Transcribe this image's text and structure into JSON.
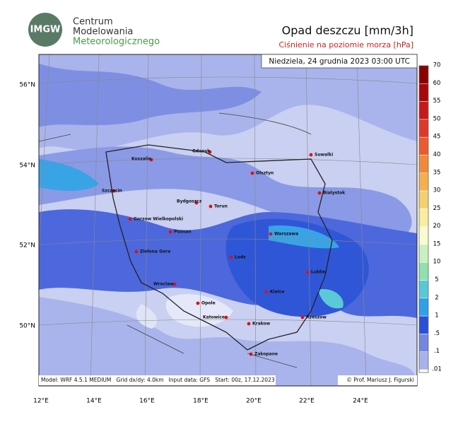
{
  "header": {
    "org_lines": [
      "Centrum",
      "Modelowania",
      "Meteorologicznego"
    ],
    "logo": "IMGW",
    "title": "Opad deszczu [mm/3h]",
    "subtitle": "Ciśnienie na poziomie morza [hPa]"
  },
  "map": {
    "valid_time": "Niedziela, 24 grudnia 2023 03:00 UTC",
    "lat_labels": [
      "56°N",
      "54°N",
      "52°N",
      "50°N"
    ],
    "lon_labels": [
      "12°E",
      "14°E",
      "16°E",
      "18°E",
      "20°E",
      "22°E",
      "24°E"
    ],
    "cities": [
      "Gdansk",
      "Koszalin",
      "Suwalki",
      "Olsztyn",
      "Bialystok",
      "Szczecin",
      "Bydgoszcz",
      "Torun",
      "Gorzow Wielkopolski",
      "Poznan",
      "Warszawa",
      "Zielona Gora",
      "Lodz",
      "Lublin",
      "Wroclaw",
      "Kielce",
      "Opole",
      "Katowice",
      "Krakow",
      "Rzeszow",
      "Zakopane"
    ],
    "footer_left": "Model: WRF 4.5.1 MEDIUM   Grid dx/dy: 4.0km   Input data: GFS   Start: 00z, 17.12.2023",
    "footer_right": "© Prof. Mariusz J. Figurski"
  },
  "colorbar": {
    "labels": [
      "70",
      "60",
      "55",
      "50",
      "45",
      "40",
      "35",
      "30",
      "25",
      "20",
      "15",
      "10",
      "5",
      "2",
      "1",
      ".5",
      ".1",
      ".01"
    ],
    "colors": [
      "#8a0000",
      "#a80808",
      "#c81818",
      "#e03828",
      "#ec5a30",
      "#f08a3a",
      "#f4b050",
      "#f4d070",
      "#f8eda0",
      "#f8fad0",
      "#c8f0c0",
      "#90e0b0",
      "#58c8d8",
      "#30a0e8",
      "#2a50d8",
      "#7486e0",
      "#a8b2ea"
    ]
  }
}
